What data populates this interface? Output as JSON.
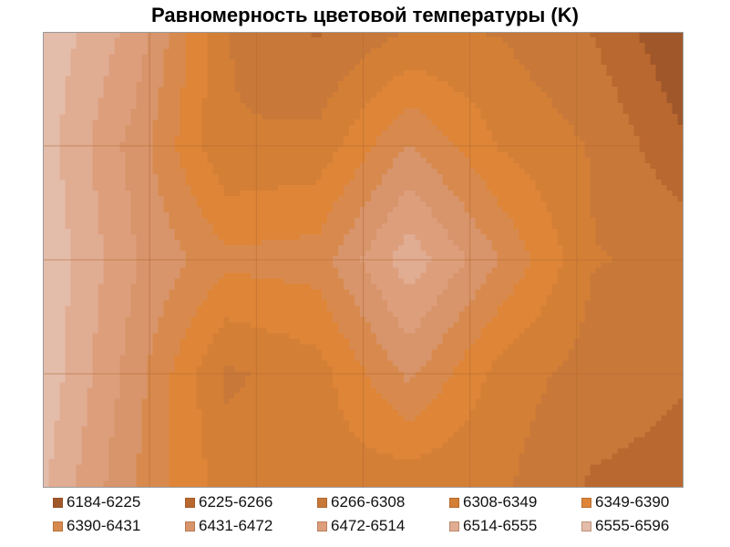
{
  "title": "Равномерность цветовой температуры (K)",
  "chart_data": {
    "type": "contour",
    "title": "Равномерность цветовой температуры (K)",
    "xlabel": "",
    "ylabel": "",
    "grid": true,
    "grid_columns": 6,
    "grid_rows": 4,
    "legend_position": "bottom",
    "levels": [
      {
        "label": "6184-6225",
        "min": 6184,
        "max": 6225,
        "color": "#a0572a"
      },
      {
        "label": "6225-6266",
        "min": 6225,
        "max": 6266,
        "color": "#b9682f"
      },
      {
        "label": "6266-6308",
        "min": 6266,
        "max": 6308,
        "color": "#c8793a"
      },
      {
        "label": "6308-6349",
        "min": 6308,
        "max": 6349,
        "color": "#d47f36"
      },
      {
        "label": "6349-6390",
        "min": 6349,
        "max": 6390,
        "color": "#de8538"
      },
      {
        "label": "6390-6431",
        "min": 6390,
        "max": 6431,
        "color": "#d88a4e"
      },
      {
        "label": "6431-6472",
        "min": 6431,
        "max": 6472,
        "color": "#d8946a"
      },
      {
        "label": "6472-6514",
        "min": 6472,
        "max": 6514,
        "color": "#dd9e7c"
      },
      {
        "label": "6514-6555",
        "min": 6514,
        "max": 6555,
        "color": "#e0ac92"
      },
      {
        "label": "6555-6596",
        "min": 6555,
        "max": 6596,
        "color": "#e3bcaa"
      }
    ],
    "values": [
      [
        6586,
        6500,
        6310,
        6262,
        6310,
        6306,
        6265,
        6184
      ],
      [
        6575,
        6455,
        6310,
        6320,
        6435,
        6345,
        6305,
        6230
      ],
      [
        6590,
        6475,
        6400,
        6410,
        6540,
        6430,
        6310,
        6300
      ],
      [
        6585,
        6450,
        6300,
        6330,
        6440,
        6330,
        6290,
        6270
      ],
      [
        6560,
        6430,
        6330,
        6330,
        6320,
        6315,
        6260,
        6250
      ]
    ]
  }
}
